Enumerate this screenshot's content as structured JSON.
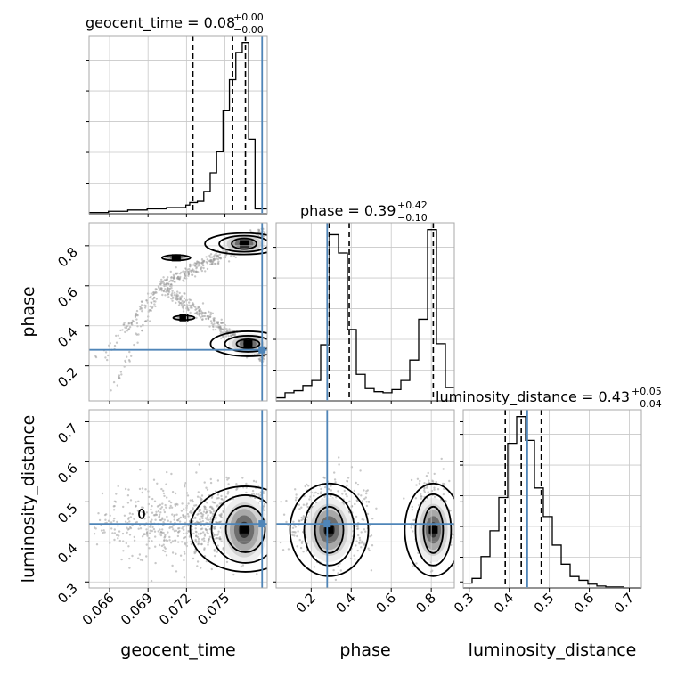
{
  "chart_data": {
    "type": "corner",
    "parameters": [
      "geocent_time",
      "phase",
      "luminosity_distance"
    ],
    "truths": {
      "geocent_time": 0.0779,
      "phase": 0.28,
      "luminosity_distance": 0.445
    },
    "colors": {
      "truth": "#4f85b8",
      "hist": "#000000",
      "grid": "#c8c8c8",
      "frame": "#a8a8a8"
    },
    "titles": [
      {
        "param": "geocent_time",
        "text": "geocent_time = 0.08",
        "sup": "+0.00",
        "sub": "−0.00"
      },
      {
        "param": "phase",
        "text": "phase = 0.39",
        "sup": "+0.42",
        "sub": "−0.10"
      },
      {
        "param": "luminosity_distance",
        "text": "luminosity_distance = 0.43",
        "sup": "+0.05",
        "sub": "−0.04"
      }
    ],
    "axis_labels": {
      "geocent_time": "geocent_time",
      "phase": "phase",
      "luminosity_distance": "luminosity_distance"
    },
    "ranges": {
      "geocent_time": [
        0.0644,
        0.0783
      ],
      "phase": [
        0.025,
        0.915
      ],
      "luminosity_distance": [
        0.285,
        0.73
      ]
    },
    "ticks": {
      "geocent_time": [
        0.066,
        0.069,
        0.072,
        0.075
      ],
      "phase": [
        0.2,
        0.4,
        0.6,
        0.8
      ],
      "luminosity_distance": [
        0.3,
        0.4,
        0.5,
        0.6,
        0.7
      ]
    },
    "tick_labels": {
      "geocent_time": [
        "0.066",
        "0.069",
        "0.072",
        "0.075"
      ],
      "phase_x": [
        "0.2",
        "0.4",
        "0.6",
        "0.8"
      ],
      "phase_y": [
        "0.2",
        "0.4",
        "0.6",
        "0.8"
      ],
      "luminosity_distance_x": [
        "0.3",
        "0.4",
        "0.5",
        "0.6",
        "0.7"
      ],
      "luminosity_distance_y": [
        "0.3",
        "0.4",
        "0.5",
        "0.6",
        "0.7"
      ]
    },
    "quantiles": {
      "geocent_time": [
        0.0725,
        0.0756,
        0.0766
      ],
      "phase": [
        0.29,
        0.39,
        0.81
      ],
      "luminosity_distance": [
        0.39,
        0.43,
        0.48
      ]
    },
    "histograms": {
      "geocent_time": {
        "edges": [
          0.0644,
          0.06591,
          0.06742,
          0.06893,
          0.07044,
          0.07195,
          0.07225,
          0.07285,
          0.07335,
          0.07385,
          0.07435,
          0.07485,
          0.07535,
          0.07585,
          0.07635,
          0.07685,
          0.07735,
          0.0783
        ],
        "counts": [
          1,
          2,
          3,
          4,
          5,
          7,
          9,
          10,
          18,
          33,
          50,
          83,
          108,
          130,
          138,
          60,
          4
        ]
      },
      "phase": {
        "edges": [
          0.025,
          0.0695,
          0.114,
          0.1585,
          0.203,
          0.2475,
          0.292,
          0.3365,
          0.381,
          0.4255,
          0.47,
          0.5145,
          0.559,
          0.6035,
          0.648,
          0.6925,
          0.737,
          0.7815,
          0.826,
          0.8705,
          0.915
        ],
        "counts": [
          3,
          8,
          10,
          15,
          20,
          55,
          163,
          145,
          70,
          26,
          12,
          9,
          8,
          11,
          20,
          40,
          80,
          168,
          56,
          13
        ]
      },
      "luminosity_distance": {
        "edges": [
          0.285,
          0.3072,
          0.3295,
          0.3518,
          0.374,
          0.3962,
          0.4185,
          0.4408,
          0.463,
          0.4852,
          0.5075,
          0.5298,
          0.552,
          0.5742,
          0.5965,
          0.6188,
          0.641,
          0.6632,
          0.6855,
          0.7078,
          0.73
        ],
        "counts": [
          5,
          10,
          33,
          60,
          95,
          152,
          180,
          155,
          105,
          75,
          45,
          25,
          12,
          8,
          4,
          2,
          1,
          1,
          0,
          0
        ]
      }
    },
    "scatter_shapes": {
      "time_phase": "V-shaped arm: phase ~0.6 at geocent_time ~0.070, rising to ~0.81 and falling to ~0.30 near geocent_time 0.0765",
      "time_distance": "cloud 0.35-0.55, densest near (0.0765, 0.43)",
      "phase_distance": "two modes near phase 0.29 and 0.81, distance ~0.43"
    },
    "density_modes": {
      "time_phase": [
        [
          0.0765,
          0.81
        ],
        [
          0.0768,
          0.31
        ],
        [
          0.0718,
          0.44
        ],
        [
          0.0712,
          0.74
        ]
      ],
      "time_distance": [
        [
          0.0765,
          0.43
        ]
      ],
      "phase_distance": [
        [
          0.29,
          0.43
        ],
        [
          0.81,
          0.43
        ]
      ]
    }
  }
}
